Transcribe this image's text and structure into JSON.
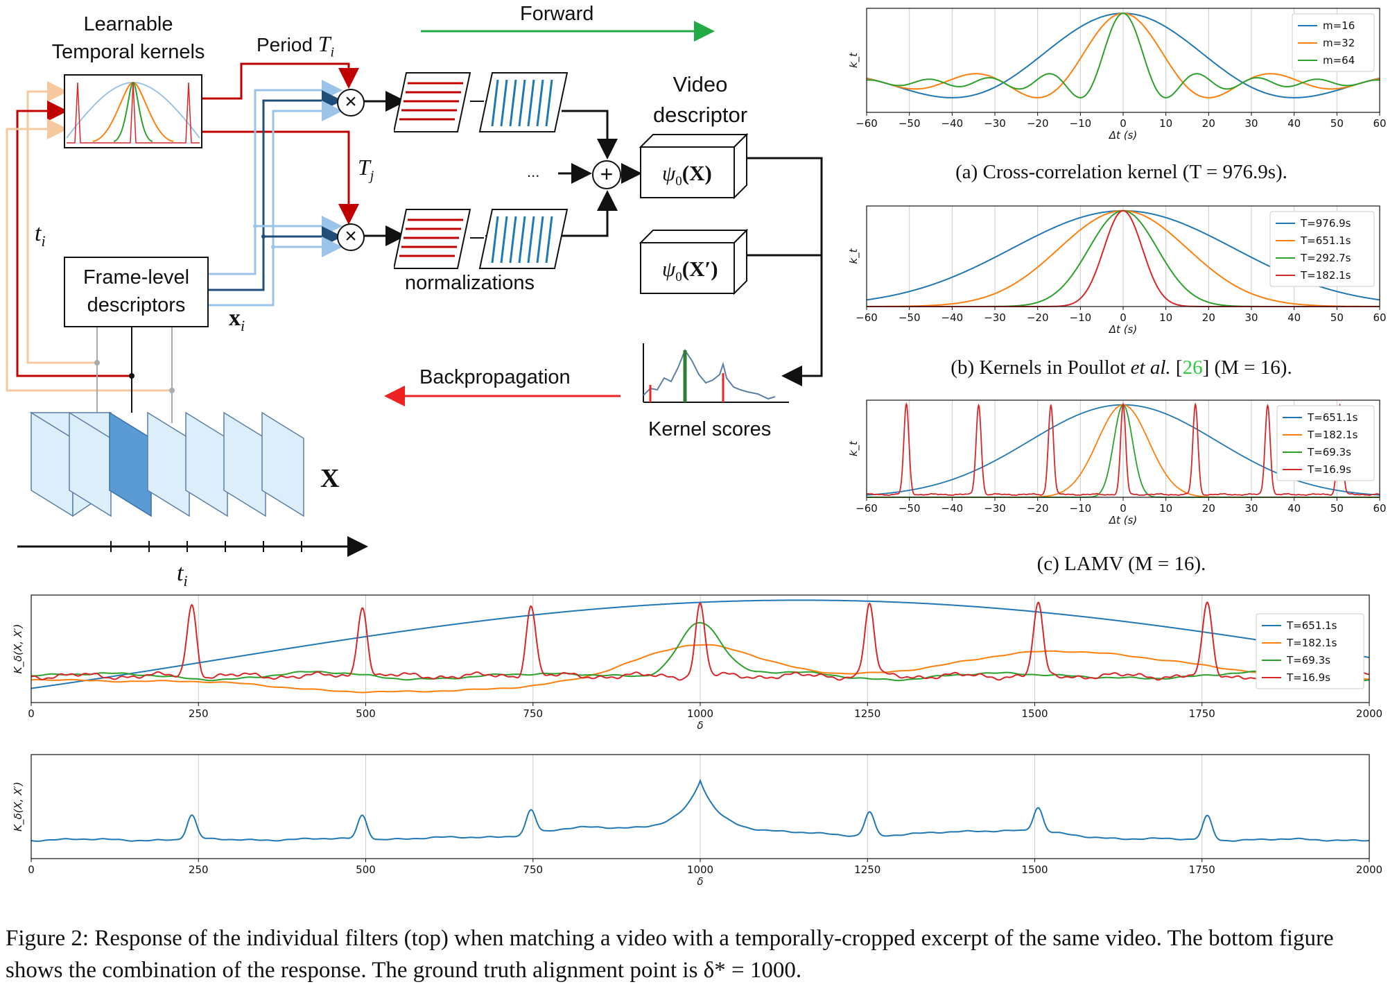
{
  "diagram": {
    "kernels_label": "Learnable\nTemporal kernels",
    "period_label": "Period",
    "period_var": "T",
    "period_sub": "i",
    "tj_var": "T",
    "tj_sub": "j",
    "ti_var": "t",
    "ti_sub": "i",
    "frame_desc_label": "Frame-level\ndescriptors",
    "xi_var": "x",
    "xi_sub": "i",
    "forward_label": "Forward",
    "backprop_label": "Backpropagation",
    "normalizations_label": "normalizations",
    "video_descriptor_label": "Video\ndescriptor",
    "psi_x": "ψ",
    "psi_sub": "0",
    "psi_arg_x": "(X)",
    "psi_arg_xp": "(X′)",
    "ellipsis": "...",
    "kernel_scores_label": "Kernel scores",
    "big_x": "X",
    "ti_bottom_var": "t",
    "ti_bottom_sub": "i"
  },
  "captions": {
    "a_text": "(a) Cross-correlation kernel (T = 976.9s).",
    "b_pre": "(b) Kernels in Poullot",
    "b_etal": "et al.",
    "b_cite": "26",
    "b_post": "(M = 16).",
    "c_text": "(c) LAMV (M = 16).",
    "figure": "Figure 2: Response of the individual filters (top) when matching a video with a temporally-cropped excerpt of the same video. The bottom figure shows the combination of the response. The ground truth alignment point is δ* = 1000."
  },
  "colors": {
    "blue": "#1f77b4",
    "orange": "#ff7f0e",
    "green": "#2ca02c",
    "red": "#d62728",
    "dark_red": "#c00000",
    "forward_green": "#22aa44",
    "backprop_red": "#ee2222",
    "light_blue": "#9cc3e8",
    "frame_fill": "#ddeefb",
    "frame_dark": "#5b9bd5",
    "peach": "#f6c8a0"
  },
  "chart_data": [
    {
      "id": "a",
      "type": "line",
      "xlabel": "Δt (s)",
      "ylabel": "k_t",
      "xlim": [
        -60,
        60
      ],
      "xticks": [
        -60,
        -50,
        -40,
        -30,
        -20,
        -10,
        0,
        10,
        20,
        30,
        40,
        50,
        60
      ],
      "grid": "vertical",
      "legend_position": "top-right",
      "series": [
        {
          "name": "m=16",
          "color": "#1f77b4"
        },
        {
          "name": "m=32",
          "color": "#ff7f0e"
        },
        {
          "name": "m=64",
          "color": "#2ca02c"
        }
      ]
    },
    {
      "id": "b",
      "type": "line",
      "xlabel": "Δt (s)",
      "ylabel": "k_t",
      "xlim": [
        -60,
        60
      ],
      "xticks": [
        -60,
        -50,
        -40,
        -30,
        -20,
        -10,
        0,
        10,
        20,
        30,
        40,
        50,
        60
      ],
      "grid": "vertical",
      "legend_position": "top-right",
      "series": [
        {
          "name": "T=976.9s",
          "color": "#1f77b4"
        },
        {
          "name": "T=651.1s",
          "color": "#ff7f0e"
        },
        {
          "name": "T=292.7s",
          "color": "#2ca02c"
        },
        {
          "name": "T=182.1s",
          "color": "#d62728"
        }
      ]
    },
    {
      "id": "c",
      "type": "line",
      "xlabel": "Δt (s)",
      "ylabel": "k_t",
      "xlim": [
        -60,
        60
      ],
      "xticks": [
        -60,
        -50,
        -40,
        -30,
        -20,
        -10,
        0,
        10,
        20,
        30,
        40,
        50,
        60
      ],
      "grid": "vertical",
      "legend_position": "top-right",
      "series": [
        {
          "name": "T=651.1s",
          "color": "#1f77b4"
        },
        {
          "name": "T=182.1s",
          "color": "#ff7f0e"
        },
        {
          "name": "T=69.3s",
          "color": "#2ca02c"
        },
        {
          "name": "T=16.9s",
          "color": "#d62728"
        }
      ]
    },
    {
      "id": "d",
      "type": "line",
      "xlabel": "δ",
      "ylabel": "K_δ(X, X′)",
      "xlim": [
        0,
        2000
      ],
      "xticks": [
        0,
        250,
        500,
        750,
        1000,
        1250,
        1500,
        1750,
        2000
      ],
      "grid": "vertical",
      "legend_position": "right",
      "series": [
        {
          "name": "T=651.1s",
          "color": "#1f77b4"
        },
        {
          "name": "T=182.1s",
          "color": "#ff7f0e"
        },
        {
          "name": "T=69.3s",
          "color": "#2ca02c"
        },
        {
          "name": "T=16.9s",
          "color": "#d62728"
        }
      ]
    },
    {
      "id": "e",
      "type": "line",
      "xlabel": "δ",
      "ylabel": "K_δ(X, X′)",
      "xlim": [
        0,
        2000
      ],
      "xticks": [
        0,
        250,
        500,
        750,
        1000,
        1250,
        1500,
        1750,
        2000
      ],
      "grid": "vertical",
      "series": [
        {
          "color": "#1f77b4"
        }
      ]
    }
  ]
}
